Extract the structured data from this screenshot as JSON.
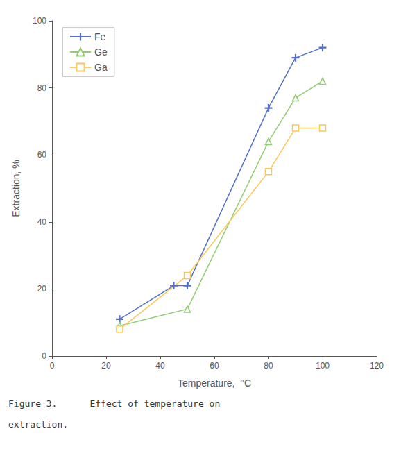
{
  "chart_data": {
    "type": "line",
    "xlabel": "Temperature,  °C",
    "ylabel": "Extraction, %",
    "xlim": [
      0,
      120
    ],
    "xticks": [
      0,
      20,
      40,
      60,
      80,
      100,
      120
    ],
    "ylim": [
      0,
      100
    ],
    "yticks": [
      0,
      20,
      40,
      60,
      80,
      100
    ],
    "legend": "upper left",
    "series": [
      {
        "name": "Fe",
        "marker": "plus",
        "x": [
          25,
          45,
          50,
          80,
          90,
          100
        ],
        "values": [
          11,
          21,
          21,
          74,
          89,
          92
        ]
      },
      {
        "name": "Ge",
        "marker": "triangle",
        "x": [
          25,
          50,
          80,
          90,
          100
        ],
        "values": [
          9,
          14,
          64,
          77,
          82
        ]
      },
      {
        "name": "Ga",
        "marker": "square",
        "x": [
          25,
          50,
          80,
          90,
          100
        ],
        "values": [
          8,
          24,
          55,
          68,
          68
        ]
      }
    ],
    "annotations": [
      "Figure 3.      Effect of temperature on",
      "extraction."
    ]
  }
}
